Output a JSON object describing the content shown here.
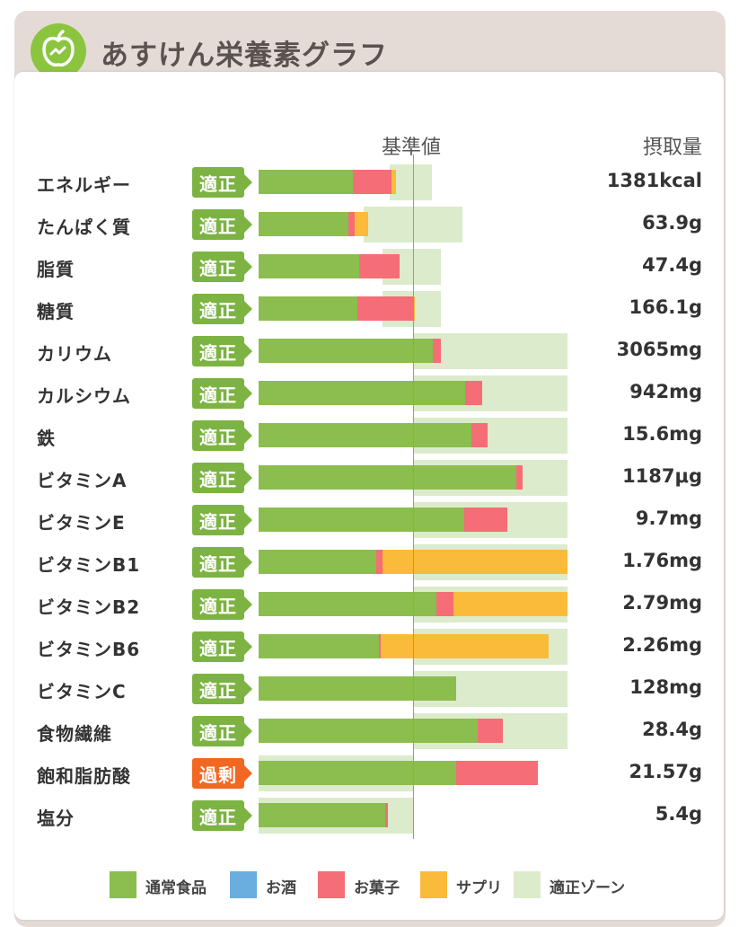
{
  "header": {
    "title": "あすけん栄養素グラフ",
    "logo": "apple-icon"
  },
  "columns": {
    "reference": "基準値",
    "intake": "摂取量"
  },
  "colors": {
    "normal_food": "#8bbd4f",
    "alcohol": "#6aaee0",
    "sweets": "#f56d76",
    "supplement": "#fbbb3a",
    "zone": "#dcebcc",
    "ok_badge": "#7cb342",
    "over_badge": "#f26722"
  },
  "chart_data": {
    "type": "bar",
    "orientation": "horizontal",
    "stacked": true,
    "unit": "percent_of_reference",
    "reference_value": 100,
    "xlim": [
      0,
      200
    ],
    "rows": [
      {
        "name": "エネルギー",
        "status": "適正",
        "status_type": "ok",
        "value": "1381kcal",
        "food": 61,
        "sweets": 25,
        "supplement": 3,
        "zone": [
          85,
          112
        ]
      },
      {
        "name": "たんぱく質",
        "status": "適正",
        "status_type": "ok",
        "value": "63.9g",
        "food": 58,
        "sweets": 4,
        "supplement": 9,
        "zone": [
          68,
          132
        ]
      },
      {
        "name": "脂質",
        "status": "適正",
        "status_type": "ok",
        "value": "47.4g",
        "food": 65,
        "sweets": 26,
        "supplement": 0,
        "zone": [
          80,
          118
        ]
      },
      {
        "name": "糖質",
        "status": "適正",
        "status_type": "ok",
        "value": "166.1g",
        "food": 64,
        "sweets": 36,
        "supplement": 1,
        "zone": [
          80,
          118
        ]
      },
      {
        "name": "カリウム",
        "status": "適正",
        "status_type": "ok",
        "value": "3065mg",
        "food": 113,
        "sweets": 5,
        "supplement": 0,
        "zone": [
          100,
          200
        ]
      },
      {
        "name": "カルシウム",
        "status": "適正",
        "status_type": "ok",
        "value": "942mg",
        "food": 134,
        "sweets": 11,
        "supplement": 0,
        "zone": [
          100,
          200
        ]
      },
      {
        "name": "鉄",
        "status": "適正",
        "status_type": "ok",
        "value": "15.6mg",
        "food": 138,
        "sweets": 10,
        "supplement": 0,
        "zone": [
          100,
          200
        ]
      },
      {
        "name": "ビタミンA",
        "status": "適正",
        "status_type": "ok",
        "value": "1187μg",
        "food": 167,
        "sweets": 4,
        "supplement": 0,
        "zone": [
          100,
          200
        ]
      },
      {
        "name": "ビタミンE",
        "status": "適正",
        "status_type": "ok",
        "value": "9.7mg",
        "food": 133,
        "sweets": 28,
        "supplement": 0,
        "zone": [
          100,
          200
        ]
      },
      {
        "name": "ビタミンB1",
        "status": "適正",
        "status_type": "ok",
        "value": "1.76mg",
        "food": 76,
        "sweets": 4,
        "supplement": 120,
        "zone": [
          100,
          200
        ]
      },
      {
        "name": "ビタミンB2",
        "status": "適正",
        "status_type": "ok",
        "value": "2.79mg",
        "food": 115,
        "sweets": 11,
        "supplement": 74,
        "zone": [
          100,
          200
        ]
      },
      {
        "name": "ビタミンB6",
        "status": "適正",
        "status_type": "ok",
        "value": "2.26mg",
        "food": 78,
        "sweets": 1,
        "supplement": 109,
        "zone": [
          100,
          200
        ]
      },
      {
        "name": "ビタミンC",
        "status": "適正",
        "status_type": "ok",
        "value": "128mg",
        "food": 128,
        "sweets": 0,
        "supplement": 0,
        "zone": [
          100,
          200
        ]
      },
      {
        "name": "食物繊維",
        "status": "適正",
        "status_type": "ok",
        "value": "28.4g",
        "food": 142,
        "sweets": 16,
        "supplement": 0,
        "zone": [
          100,
          200
        ]
      },
      {
        "name": "飽和脂肪酸",
        "status": "過剰",
        "status_type": "over",
        "value": "21.57g",
        "food": 128,
        "sweets": 53,
        "supplement": 0,
        "zone": [
          0,
          100
        ]
      },
      {
        "name": "塩分",
        "status": "適正",
        "status_type": "ok",
        "value": "5.4g",
        "food": 82,
        "sweets": 2,
        "supplement": 0,
        "zone": [
          0,
          100
        ]
      }
    ],
    "legend": [
      {
        "label": "通常食品",
        "color": "#8bbd4f"
      },
      {
        "label": "お酒",
        "color": "#6aaee0"
      },
      {
        "label": "お菓子",
        "color": "#f56d76"
      },
      {
        "label": "サプリ",
        "color": "#fbbb3a"
      },
      {
        "label": "適正ゾーン",
        "color": "#dcebcc"
      }
    ]
  }
}
